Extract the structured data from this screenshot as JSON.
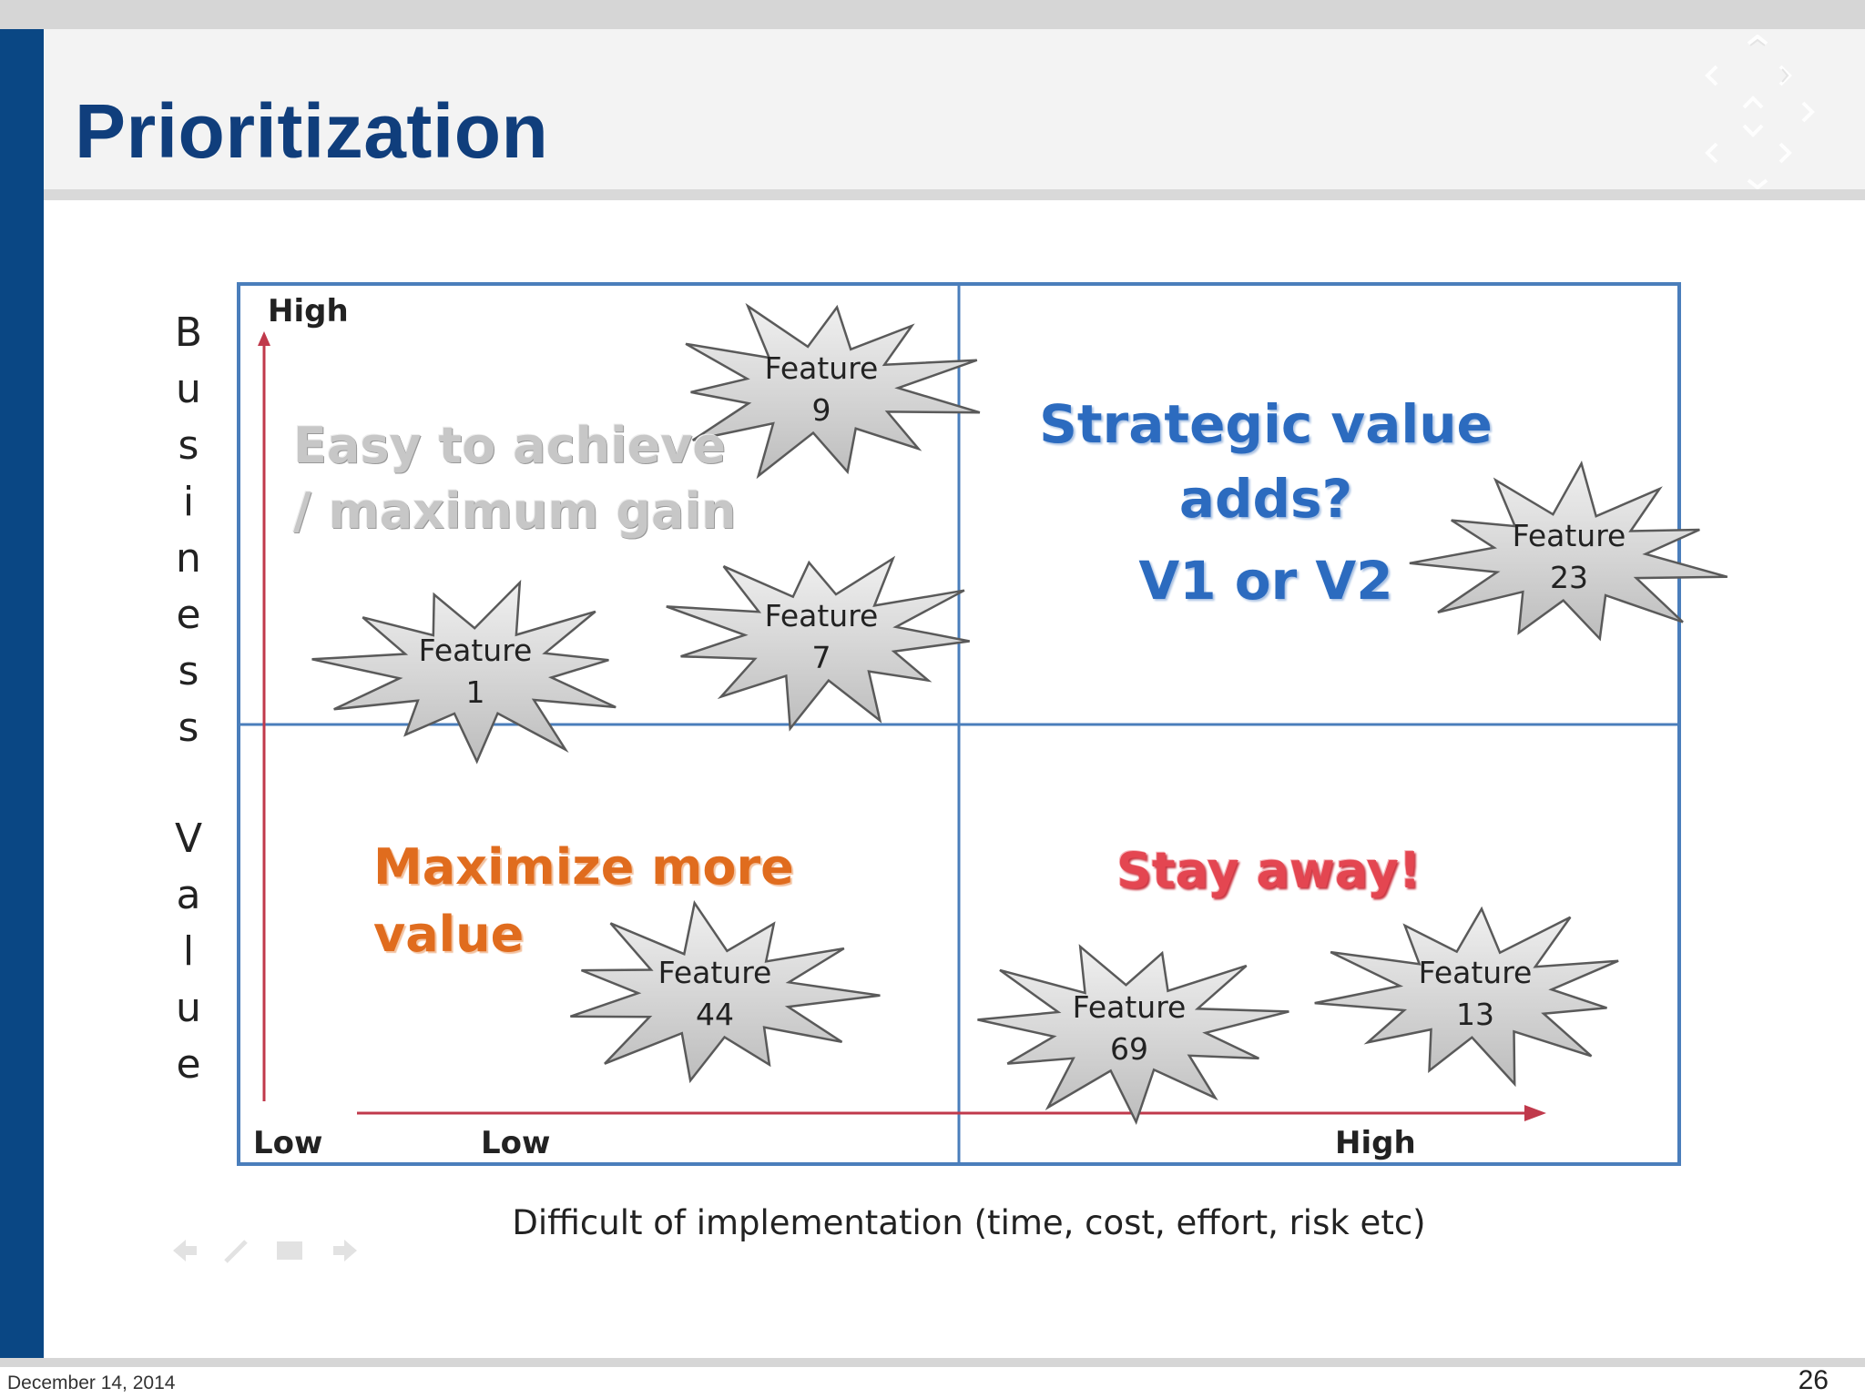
{
  "slide": {
    "title": "Prioritization",
    "date": "December 14, 2014",
    "page_number": "26"
  },
  "matrix": {
    "y_axis_title": [
      "B",
      "u",
      "s",
      "i",
      "n",
      "e",
      "s",
      "s",
      "",
      "V",
      "a",
      "l",
      "u",
      "e"
    ],
    "x_axis_title": "Difficult of implementation  (time, cost, effort, risk etc)",
    "y_high_label": "High",
    "y_low_label": "Low",
    "x_low_label": "Low",
    "x_high_label": "High",
    "quadrants": {
      "top_left": [
        "Easy to achieve",
        "/ maximum gain"
      ],
      "top_right": [
        "Strategic value",
        "adds?",
        "V1 or V2"
      ],
      "bottom_left": [
        "Maximize more",
        "value"
      ],
      "bottom_right": [
        "Stay away!"
      ]
    },
    "features": [
      {
        "label": "Feature",
        "number": "9"
      },
      {
        "label": "Feature",
        "number": "7"
      },
      {
        "label": "Feature",
        "number": "1"
      },
      {
        "label": "Feature",
        "number": "23"
      },
      {
        "label": "Feature",
        "number": "44"
      },
      {
        "label": "Feature",
        "number": "69"
      },
      {
        "label": "Feature",
        "number": "13"
      }
    ]
  },
  "colors": {
    "brand_blue": "#0a4784",
    "grid_blue": "#4a7ebb",
    "axis_red": "#c0394b",
    "starburst_fill": "#d4d4d4"
  }
}
